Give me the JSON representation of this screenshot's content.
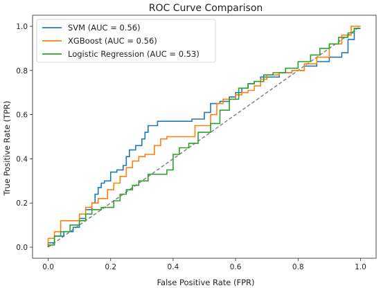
{
  "chart_data": {
    "type": "line",
    "title": "ROC Curve Comparison",
    "xlabel": "False Positive Rate (FPR)",
    "ylabel": "True Positive Rate (TPR)",
    "xlim": [
      -0.05,
      1.05
    ],
    "ylim": [
      -0.05,
      1.05
    ],
    "xticks": [
      "0.0",
      "0.2",
      "0.4",
      "0.6",
      "0.8",
      "1.0"
    ],
    "yticks": [
      "0.0",
      "0.2",
      "0.4",
      "0.6",
      "0.8",
      "1.0"
    ],
    "legend_position": "top-left",
    "grid": false,
    "reference_line": {
      "x": [
        0,
        1
      ],
      "y": [
        0,
        1
      ],
      "color": "#808080",
      "style": "dashed"
    },
    "series": [
      {
        "name": "SVM (AUC = 0.56)",
        "color": "#1f77b4",
        "x": [
          0,
          0,
          0.02,
          0.02,
          0.05,
          0.05,
          0.08,
          0.08,
          0.1,
          0.1,
          0.12,
          0.12,
          0.14,
          0.14,
          0.15,
          0.15,
          0.16,
          0.16,
          0.17,
          0.17,
          0.18,
          0.18,
          0.2,
          0.2,
          0.22,
          0.22,
          0.24,
          0.24,
          0.25,
          0.25,
          0.26,
          0.26,
          0.28,
          0.28,
          0.3,
          0.3,
          0.31,
          0.31,
          0.32,
          0.32,
          0.33,
          0.33,
          0.35,
          0.35,
          0.38,
          0.38,
          0.42,
          0.42,
          0.46,
          0.46,
          0.5,
          0.5,
          0.52,
          0.52,
          0.55,
          0.55,
          0.58,
          0.58,
          0.6,
          0.6,
          0.62,
          0.62,
          0.64,
          0.64,
          0.66,
          0.66,
          0.68,
          0.68,
          0.7,
          0.7,
          0.74,
          0.74,
          0.78,
          0.78,
          0.82,
          0.82,
          0.86,
          0.86,
          0.9,
          0.9,
          0.94,
          0.94,
          0.96,
          0.96,
          0.98,
          0.98,
          1.0
        ],
        "y": [
          0,
          0.02,
          0.02,
          0.05,
          0.05,
          0.07,
          0.07,
          0.09,
          0.09,
          0.13,
          0.13,
          0.17,
          0.17,
          0.2,
          0.2,
          0.24,
          0.24,
          0.27,
          0.27,
          0.29,
          0.29,
          0.3,
          0.3,
          0.34,
          0.34,
          0.35,
          0.35,
          0.37,
          0.37,
          0.41,
          0.41,
          0.44,
          0.44,
          0.46,
          0.46,
          0.49,
          0.49,
          0.52,
          0.52,
          0.55,
          0.55,
          0.55,
          0.55,
          0.57,
          0.57,
          0.57,
          0.57,
          0.57,
          0.57,
          0.58,
          0.58,
          0.61,
          0.61,
          0.65,
          0.65,
          0.66,
          0.66,
          0.68,
          0.68,
          0.7,
          0.7,
          0.72,
          0.72,
          0.74,
          0.74,
          0.75,
          0.75,
          0.77,
          0.77,
          0.77,
          0.77,
          0.79,
          0.79,
          0.8,
          0.8,
          0.82,
          0.82,
          0.84,
          0.84,
          0.86,
          0.86,
          0.88,
          0.88,
          0.94,
          0.94,
          0.99,
          0.99
        ]
      },
      {
        "name": "XGBoost (AUC = 0.56)",
        "color": "#ff7f0e",
        "x": [
          0,
          0,
          0.02,
          0.02,
          0.04,
          0.04,
          0.07,
          0.07,
          0.1,
          0.1,
          0.12,
          0.12,
          0.14,
          0.14,
          0.16,
          0.16,
          0.19,
          0.19,
          0.21,
          0.21,
          0.23,
          0.23,
          0.25,
          0.25,
          0.27,
          0.27,
          0.29,
          0.29,
          0.31,
          0.31,
          0.34,
          0.34,
          0.36,
          0.36,
          0.38,
          0.38,
          0.42,
          0.42,
          0.47,
          0.47,
          0.52,
          0.52,
          0.54,
          0.54,
          0.56,
          0.56,
          0.6,
          0.6,
          0.62,
          0.62,
          0.64,
          0.64,
          0.66,
          0.66,
          0.68,
          0.68,
          0.7,
          0.7,
          0.74,
          0.74,
          0.78,
          0.78,
          0.82,
          0.82,
          0.86,
          0.86,
          0.9,
          0.9,
          0.94,
          0.94,
          0.97,
          0.97,
          1.0
        ],
        "y": [
          0,
          0.04,
          0.04,
          0.07,
          0.07,
          0.12,
          0.12,
          0.12,
          0.12,
          0.15,
          0.15,
          0.18,
          0.18,
          0.2,
          0.2,
          0.22,
          0.22,
          0.26,
          0.26,
          0.29,
          0.29,
          0.32,
          0.32,
          0.36,
          0.36,
          0.39,
          0.39,
          0.41,
          0.41,
          0.42,
          0.42,
          0.46,
          0.46,
          0.49,
          0.49,
          0.5,
          0.5,
          0.5,
          0.5,
          0.55,
          0.55,
          0.6,
          0.6,
          0.65,
          0.65,
          0.67,
          0.67,
          0.69,
          0.69,
          0.7,
          0.7,
          0.71,
          0.71,
          0.73,
          0.73,
          0.76,
          0.76,
          0.78,
          0.78,
          0.79,
          0.79,
          0.8,
          0.8,
          0.83,
          0.83,
          0.86,
          0.86,
          0.92,
          0.92,
          0.96,
          0.96,
          1.0,
          1.0
        ]
      },
      {
        "name": "Logistic Regression (AUC = 0.53)",
        "color": "#2ca02c",
        "x": [
          0,
          0,
          0.02,
          0.02,
          0.04,
          0.04,
          0.07,
          0.07,
          0.1,
          0.1,
          0.12,
          0.12,
          0.14,
          0.14,
          0.17,
          0.17,
          0.21,
          0.21,
          0.23,
          0.23,
          0.25,
          0.25,
          0.27,
          0.27,
          0.29,
          0.29,
          0.32,
          0.32,
          0.35,
          0.35,
          0.38,
          0.38,
          0.4,
          0.4,
          0.42,
          0.42,
          0.45,
          0.45,
          0.48,
          0.48,
          0.52,
          0.52,
          0.55,
          0.55,
          0.58,
          0.58,
          0.61,
          0.61,
          0.64,
          0.64,
          0.66,
          0.66,
          0.69,
          0.69,
          0.72,
          0.72,
          0.76,
          0.76,
          0.8,
          0.8,
          0.84,
          0.84,
          0.87,
          0.87,
          0.9,
          0.9,
          0.93,
          0.93,
          0.96,
          0.96,
          0.98,
          0.98,
          1.0
        ],
        "y": [
          0,
          0.01,
          0.01,
          0.05,
          0.05,
          0.07,
          0.07,
          0.1,
          0.1,
          0.12,
          0.12,
          0.15,
          0.15,
          0.17,
          0.17,
          0.18,
          0.18,
          0.21,
          0.21,
          0.24,
          0.24,
          0.26,
          0.26,
          0.28,
          0.28,
          0.3,
          0.3,
          0.33,
          0.33,
          0.33,
          0.33,
          0.35,
          0.35,
          0.42,
          0.42,
          0.45,
          0.45,
          0.47,
          0.47,
          0.52,
          0.52,
          0.56,
          0.56,
          0.62,
          0.62,
          0.67,
          0.67,
          0.72,
          0.72,
          0.74,
          0.74,
          0.75,
          0.75,
          0.78,
          0.78,
          0.79,
          0.79,
          0.81,
          0.81,
          0.84,
          0.84,
          0.87,
          0.87,
          0.9,
          0.9,
          0.92,
          0.92,
          0.95,
          0.95,
          0.97,
          0.97,
          0.99,
          0.99
        ]
      }
    ]
  }
}
